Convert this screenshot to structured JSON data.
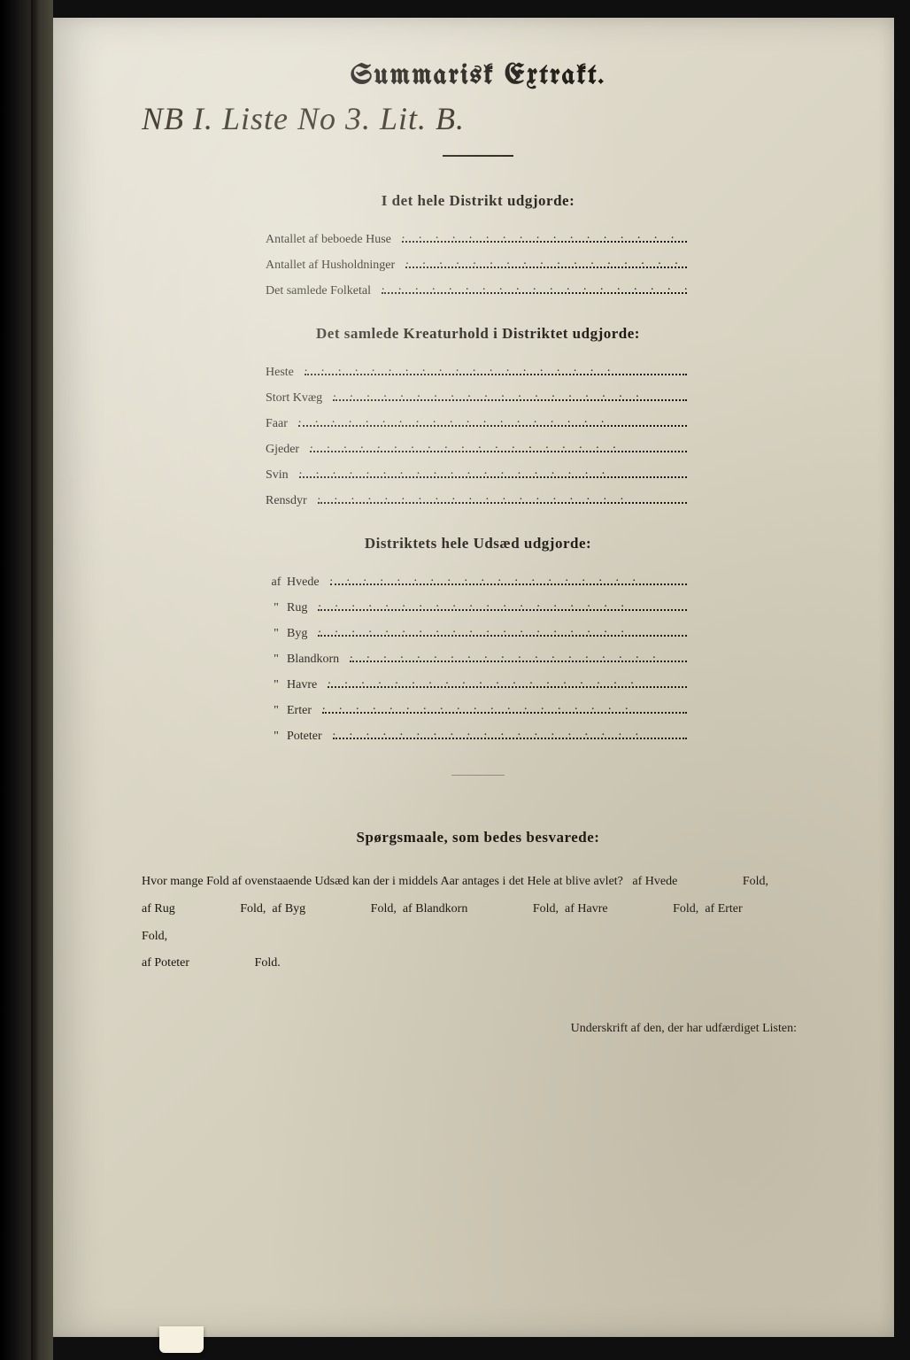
{
  "colors": {
    "page_bg": "#ddd8c8",
    "text": "#1a1510",
    "frame_bg": "#0f0f0f"
  },
  "typography": {
    "title_fontsize": 32,
    "heading_fontsize": 17,
    "body_fontsize": 14,
    "handwritten_fontsize": 36
  },
  "title": "Summarisk Extrakt.",
  "handwritten_note": "NB I. Liste No 3. Lit. B.",
  "section1": {
    "heading": "I det hele Distrikt udgjorde:",
    "items": [
      {
        "label": "Antallet af beboede Huse"
      },
      {
        "label": "Antallet af Husholdninger"
      },
      {
        "label": "Det samlede Folketal"
      }
    ]
  },
  "section2": {
    "heading": "Det samlede Kreaturhold i Distriktet udgjorde:",
    "items": [
      {
        "label": "Heste"
      },
      {
        "label": "Stort Kvæg"
      },
      {
        "label": "Faar"
      },
      {
        "label": "Gjeder"
      },
      {
        "label": "Svin"
      },
      {
        "label": "Rensdyr"
      }
    ]
  },
  "section3": {
    "heading": "Distriktets hele Udsæd udgjorde:",
    "items": [
      {
        "prefix": "af",
        "label": "Hvede"
      },
      {
        "prefix": "\"",
        "label": "Rug"
      },
      {
        "prefix": "\"",
        "label": "Byg"
      },
      {
        "prefix": "\"",
        "label": "Blandkorn"
      },
      {
        "prefix": "\"",
        "label": "Havre"
      },
      {
        "prefix": "\"",
        "label": "Erter"
      },
      {
        "prefix": "\"",
        "label": "Poteter"
      }
    ]
  },
  "questions": {
    "heading": "Spørgsmaale, som bedes besvarede:",
    "intro": "Hvor mange Fold af ovenstaaende Udsæd kan der i middels Aar antages i det Hele at blive avlet?",
    "crops": [
      {
        "prefix": "af",
        "name": "Hvede",
        "unit": "Fold,"
      },
      {
        "prefix": "af",
        "name": "Rug",
        "unit": "Fold,"
      },
      {
        "prefix": "af",
        "name": "Byg",
        "unit": "Fold,"
      },
      {
        "prefix": "af",
        "name": "Blandkorn",
        "unit": "Fold,"
      },
      {
        "prefix": "af",
        "name": "Havre",
        "unit": "Fold,"
      },
      {
        "prefix": "af",
        "name": "Erter",
        "unit": "Fold,"
      },
      {
        "prefix": "af",
        "name": "Poteter",
        "unit": "Fold."
      }
    ]
  },
  "signature_label": "Underskrift af den, der har udfærdiget Listen:"
}
